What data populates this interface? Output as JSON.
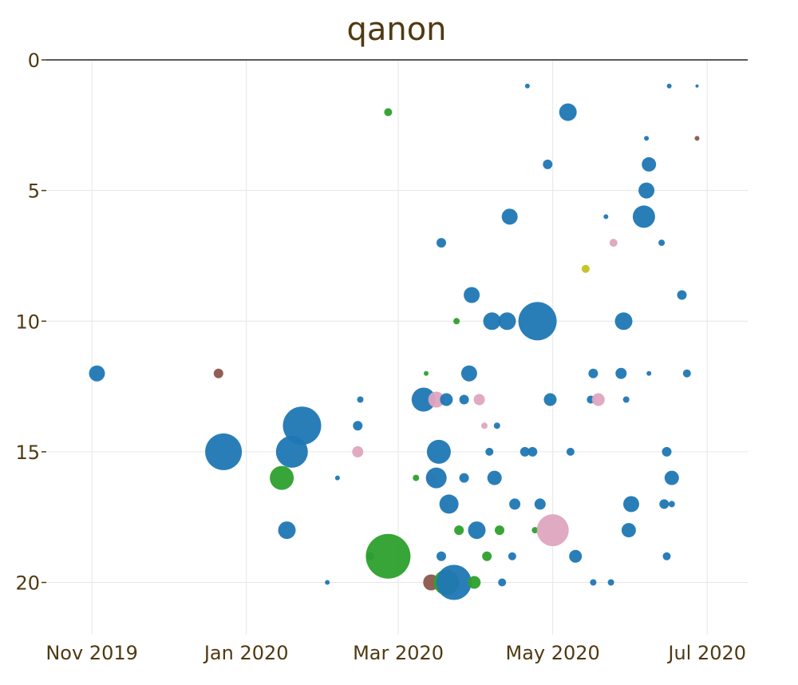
{
  "chart_data": {
    "type": "scatter",
    "title": "qanon",
    "xlabel": "",
    "ylabel": "",
    "xlim": [
      "2019-10-14",
      "2020-07-17"
    ],
    "ylim": [
      0,
      22
    ],
    "y_reversed": true,
    "x_ticks": [
      {
        "date": "2019-11-01",
        "label": "Nov 2019"
      },
      {
        "date": "2020-01-01",
        "label": "Jan 2020"
      },
      {
        "date": "2020-03-01",
        "label": "Mar 2020"
      },
      {
        "date": "2020-05-01",
        "label": "May 2020"
      },
      {
        "date": "2020-07-01",
        "label": "Jul 2020"
      }
    ],
    "y_ticks": [
      0,
      5,
      10,
      15,
      20
    ],
    "grid": true,
    "colors": {
      "blue": "#1f77b4",
      "green": "#2ca02c",
      "pink": "#dea5bf",
      "brown": "#8c564b",
      "olive": "#c2c11f"
    },
    "points": [
      {
        "date": "2019-11-03",
        "y": 12,
        "size": 10,
        "color": "blue"
      },
      {
        "date": "2019-12-21",
        "y": 12,
        "size": 6,
        "color": "brown"
      },
      {
        "date": "2019-12-23",
        "y": 15,
        "size": 23,
        "color": "blue"
      },
      {
        "date": "2020-01-15",
        "y": 16,
        "size": 15,
        "color": "green"
      },
      {
        "date": "2020-01-17",
        "y": 18,
        "size": 11,
        "color": "blue"
      },
      {
        "date": "2020-01-19",
        "y": 15,
        "size": 20,
        "color": "blue"
      },
      {
        "date": "2020-01-23",
        "y": 14,
        "size": 24,
        "color": "blue"
      },
      {
        "date": "2020-02-02",
        "y": 20,
        "size": 3,
        "color": "blue"
      },
      {
        "date": "2020-02-06",
        "y": 16,
        "size": 3,
        "color": "blue"
      },
      {
        "date": "2020-02-14",
        "y": 15,
        "size": 7,
        "color": "pink"
      },
      {
        "date": "2020-02-14",
        "y": 14,
        "size": 6,
        "color": "blue"
      },
      {
        "date": "2020-02-15",
        "y": 13,
        "size": 4,
        "color": "blue"
      },
      {
        "date": "2020-02-19",
        "y": 19,
        "size": 5,
        "color": "blue"
      },
      {
        "date": "2020-02-26",
        "y": 19,
        "size": 28,
        "color": "green"
      },
      {
        "date": "2020-02-26",
        "y": 2,
        "size": 5,
        "color": "green"
      },
      {
        "date": "2020-03-08",
        "y": 16,
        "size": 4,
        "color": "green"
      },
      {
        "date": "2020-03-11",
        "y": 13,
        "size": 15,
        "color": "blue"
      },
      {
        "date": "2020-03-12",
        "y": 12,
        "size": 3,
        "color": "green"
      },
      {
        "date": "2020-03-14",
        "y": 16,
        "size": 6,
        "color": "pink"
      },
      {
        "date": "2020-03-14",
        "y": 20,
        "size": 10,
        "color": "brown"
      },
      {
        "date": "2020-03-16",
        "y": 13,
        "size": 10,
        "color": "pink"
      },
      {
        "date": "2020-03-16",
        "y": 16,
        "size": 13,
        "color": "blue"
      },
      {
        "date": "2020-03-17",
        "y": 15,
        "size": 15,
        "color": "blue"
      },
      {
        "date": "2020-03-18",
        "y": 7,
        "size": 6,
        "color": "blue"
      },
      {
        "date": "2020-03-18",
        "y": 19,
        "size": 6,
        "color": "blue"
      },
      {
        "date": "2020-03-20",
        "y": 13,
        "size": 8,
        "color": "blue"
      },
      {
        "date": "2020-03-20",
        "y": 20,
        "size": 16,
        "color": "green"
      },
      {
        "date": "2020-03-21",
        "y": 17,
        "size": 12,
        "color": "blue"
      },
      {
        "date": "2020-03-23",
        "y": 20,
        "size": 22,
        "color": "blue"
      },
      {
        "date": "2020-03-24",
        "y": 10,
        "size": 4,
        "color": "green"
      },
      {
        "date": "2020-03-25",
        "y": 18,
        "size": 6,
        "color": "green"
      },
      {
        "date": "2020-03-27",
        "y": 13,
        "size": 6,
        "color": "blue"
      },
      {
        "date": "2020-03-27",
        "y": 16,
        "size": 6,
        "color": "blue"
      },
      {
        "date": "2020-03-29",
        "y": 12,
        "size": 10,
        "color": "blue"
      },
      {
        "date": "2020-03-30",
        "y": 9,
        "size": 10,
        "color": "blue"
      },
      {
        "date": "2020-03-31",
        "y": 20,
        "size": 8,
        "color": "green"
      },
      {
        "date": "2020-04-01",
        "y": 18,
        "size": 11,
        "color": "blue"
      },
      {
        "date": "2020-04-02",
        "y": 13,
        "size": 7,
        "color": "pink"
      },
      {
        "date": "2020-04-04",
        "y": 14,
        "size": 4,
        "color": "pink"
      },
      {
        "date": "2020-04-05",
        "y": 19,
        "size": 6,
        "color": "green"
      },
      {
        "date": "2020-04-06",
        "y": 15,
        "size": 5,
        "color": "blue"
      },
      {
        "date": "2020-04-07",
        "y": 10,
        "size": 11,
        "color": "blue"
      },
      {
        "date": "2020-04-08",
        "y": 16,
        "size": 9,
        "color": "blue"
      },
      {
        "date": "2020-04-09",
        "y": 14,
        "size": 4,
        "color": "blue"
      },
      {
        "date": "2020-04-10",
        "y": 18,
        "size": 6,
        "color": "green"
      },
      {
        "date": "2020-04-11",
        "y": 20,
        "size": 5,
        "color": "blue"
      },
      {
        "date": "2020-04-13",
        "y": 10,
        "size": 11,
        "color": "blue"
      },
      {
        "date": "2020-04-14",
        "y": 6,
        "size": 10,
        "color": "blue"
      },
      {
        "date": "2020-04-15",
        "y": 19,
        "size": 5,
        "color": "blue"
      },
      {
        "date": "2020-04-16",
        "y": 17,
        "size": 7,
        "color": "blue"
      },
      {
        "date": "2020-04-20",
        "y": 15,
        "size": 6,
        "color": "blue"
      },
      {
        "date": "2020-04-21",
        "y": 1,
        "size": 3,
        "color": "blue"
      },
      {
        "date": "2020-04-23",
        "y": 15,
        "size": 6,
        "color": "blue"
      },
      {
        "date": "2020-04-24",
        "y": 18,
        "size": 4,
        "color": "green"
      },
      {
        "date": "2020-04-25",
        "y": 10,
        "size": 24,
        "color": "blue"
      },
      {
        "date": "2020-04-26",
        "y": 17,
        "size": 7,
        "color": "blue"
      },
      {
        "date": "2020-04-29",
        "y": 4,
        "size": 6,
        "color": "blue"
      },
      {
        "date": "2020-04-30",
        "y": 13,
        "size": 8,
        "color": "blue"
      },
      {
        "date": "2020-05-01",
        "y": 18,
        "size": 20,
        "color": "pink"
      },
      {
        "date": "2020-05-07",
        "y": 2,
        "size": 11,
        "color": "blue"
      },
      {
        "date": "2020-05-08",
        "y": 15,
        "size": 5,
        "color": "blue"
      },
      {
        "date": "2020-05-10",
        "y": 19,
        "size": 8,
        "color": "blue"
      },
      {
        "date": "2020-05-14",
        "y": 8,
        "size": 5,
        "color": "olive"
      },
      {
        "date": "2020-05-16",
        "y": 13,
        "size": 5,
        "color": "blue"
      },
      {
        "date": "2020-05-17",
        "y": 12,
        "size": 6,
        "color": "blue"
      },
      {
        "date": "2020-05-17",
        "y": 20,
        "size": 4,
        "color": "blue"
      },
      {
        "date": "2020-05-19",
        "y": 13,
        "size": 8,
        "color": "pink"
      },
      {
        "date": "2020-05-22",
        "y": 6,
        "size": 3,
        "color": "blue"
      },
      {
        "date": "2020-05-24",
        "y": 20,
        "size": 4,
        "color": "blue"
      },
      {
        "date": "2020-05-25",
        "y": 7,
        "size": 5,
        "color": "pink"
      },
      {
        "date": "2020-05-28",
        "y": 12,
        "size": 7,
        "color": "blue"
      },
      {
        "date": "2020-05-29",
        "y": 10,
        "size": 11,
        "color": "blue"
      },
      {
        "date": "2020-05-30",
        "y": 13,
        "size": 4,
        "color": "blue"
      },
      {
        "date": "2020-05-31",
        "y": 18,
        "size": 9,
        "color": "blue"
      },
      {
        "date": "2020-06-01",
        "y": 17,
        "size": 10,
        "color": "blue"
      },
      {
        "date": "2020-06-06",
        "y": 6,
        "size": 14,
        "color": "blue"
      },
      {
        "date": "2020-06-07",
        "y": 5,
        "size": 10,
        "color": "blue"
      },
      {
        "date": "2020-06-07",
        "y": 3,
        "size": 3,
        "color": "blue"
      },
      {
        "date": "2020-06-08",
        "y": 4,
        "size": 9,
        "color": "blue"
      },
      {
        "date": "2020-06-08",
        "y": 12,
        "size": 3,
        "color": "blue"
      },
      {
        "date": "2020-06-13",
        "y": 7,
        "size": 4,
        "color": "blue"
      },
      {
        "date": "2020-06-14",
        "y": 17,
        "size": 6,
        "color": "blue"
      },
      {
        "date": "2020-06-15",
        "y": 19,
        "size": 5,
        "color": "blue"
      },
      {
        "date": "2020-06-15",
        "y": 15,
        "size": 6,
        "color": "blue"
      },
      {
        "date": "2020-06-16",
        "y": 1,
        "size": 3,
        "color": "blue"
      },
      {
        "date": "2020-06-17",
        "y": 16,
        "size": 9,
        "color": "blue"
      },
      {
        "date": "2020-06-17",
        "y": 17,
        "size": 4,
        "color": "blue"
      },
      {
        "date": "2020-06-21",
        "y": 9,
        "size": 6,
        "color": "blue"
      },
      {
        "date": "2020-06-23",
        "y": 12,
        "size": 5,
        "color": "blue"
      },
      {
        "date": "2020-06-27",
        "y": 3,
        "size": 3,
        "color": "brown"
      },
      {
        "date": "2020-06-27",
        "y": 1,
        "size": 2,
        "color": "blue"
      }
    ]
  }
}
